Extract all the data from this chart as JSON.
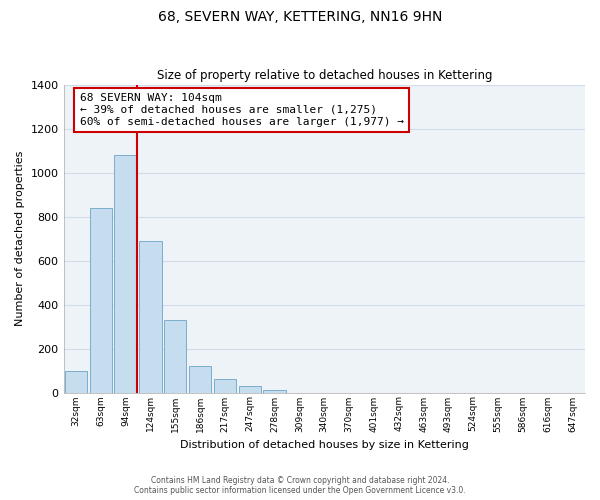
{
  "title_line1": "68, SEVERN WAY, KETTERING, NN16 9HN",
  "title_line2": "Size of property relative to detached houses in Kettering",
  "xlabel": "Distribution of detached houses by size in Kettering",
  "ylabel": "Number of detached properties",
  "bar_color": "#c5ddef",
  "bar_edge_color": "#7baecb",
  "annotation_line_color": "#cc0000",
  "annotation_box_edge_color": "#cc0000",
  "annotation_text_line1": "68 SEVERN WAY: 104sqm",
  "annotation_text_line2": "← 39% of detached houses are smaller (1,275)",
  "annotation_text_line3": "60% of semi-detached houses are larger (1,977) →",
  "categories": [
    "32sqm",
    "63sqm",
    "94sqm",
    "124sqm",
    "155sqm",
    "186sqm",
    "217sqm",
    "247sqm",
    "278sqm",
    "309sqm",
    "340sqm",
    "370sqm",
    "401sqm",
    "432sqm",
    "463sqm",
    "493sqm",
    "524sqm",
    "555sqm",
    "586sqm",
    "616sqm",
    "647sqm"
  ],
  "bar_values": [
    100,
    840,
    1080,
    690,
    330,
    120,
    60,
    30,
    10,
    0,
    0,
    0,
    0,
    0,
    0,
    0,
    0,
    0,
    0,
    0,
    0
  ],
  "red_line_bar_index": 2,
  "ylim": [
    0,
    1400
  ],
  "yticks": [
    0,
    200,
    400,
    600,
    800,
    1000,
    1200,
    1400
  ],
  "footer_line1": "Contains HM Land Registry data © Crown copyright and database right 2024.",
  "footer_line2": "Contains public sector information licensed under the Open Government Licence v3.0.",
  "grid_color": "#d0dce8",
  "background_color": "#eef3f8"
}
